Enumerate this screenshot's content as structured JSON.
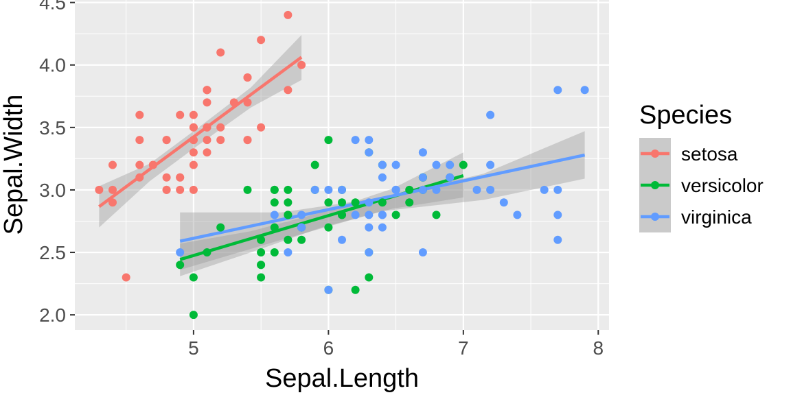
{
  "chart_data": {
    "type": "scatter",
    "title": "",
    "xlabel": "Sepal.Length",
    "ylabel": "Sepal.Width",
    "xlim": [
      4.12,
      8.08
    ],
    "ylim": [
      1.88,
      4.52
    ],
    "x_ticks": [
      5,
      6,
      7,
      8
    ],
    "x_tick_labels": [
      "5",
      "6",
      "7",
      "8"
    ],
    "y_ticks": [
      2.0,
      2.5,
      3.0,
      3.5,
      4.0,
      4.5
    ],
    "y_tick_labels": [
      "2.0",
      "2.5",
      "3.0",
      "3.5",
      "4.0",
      "4.5"
    ],
    "grid": true,
    "panel_background": "#ebebeb",
    "confidence_band_color": "#999999",
    "legend": {
      "title": "Species",
      "position": "right",
      "labels": [
        "setosa",
        "versicolor",
        "virginica"
      ]
    },
    "series": [
      {
        "name": "setosa",
        "color": "#F8766D",
        "points": [
          [
            5.1,
            3.5
          ],
          [
            4.9,
            3.0
          ],
          [
            4.7,
            3.2
          ],
          [
            4.6,
            3.1
          ],
          [
            5.0,
            3.6
          ],
          [
            5.4,
            3.9
          ],
          [
            4.6,
            3.4
          ],
          [
            5.0,
            3.4
          ],
          [
            4.4,
            2.9
          ],
          [
            4.9,
            3.1
          ],
          [
            5.4,
            3.7
          ],
          [
            4.8,
            3.4
          ],
          [
            4.8,
            3.0
          ],
          [
            4.3,
            3.0
          ],
          [
            5.8,
            4.0
          ],
          [
            5.7,
            4.4
          ],
          [
            5.4,
            3.9
          ],
          [
            5.1,
            3.5
          ],
          [
            5.7,
            3.8
          ],
          [
            5.1,
            3.8
          ],
          [
            5.4,
            3.4
          ],
          [
            5.1,
            3.7
          ],
          [
            4.6,
            3.6
          ],
          [
            5.1,
            3.3
          ],
          [
            4.8,
            3.4
          ],
          [
            5.0,
            3.0
          ],
          [
            5.0,
            3.4
          ],
          [
            5.2,
            3.5
          ],
          [
            5.2,
            3.4
          ],
          [
            4.7,
            3.2
          ],
          [
            4.8,
            3.1
          ],
          [
            5.4,
            3.4
          ],
          [
            5.2,
            4.1
          ],
          [
            5.5,
            4.2
          ],
          [
            4.9,
            3.1
          ],
          [
            5.0,
            3.2
          ],
          [
            5.5,
            3.5
          ],
          [
            4.9,
            3.6
          ],
          [
            4.4,
            3.0
          ],
          [
            5.1,
            3.4
          ],
          [
            5.0,
            3.5
          ],
          [
            4.5,
            2.3
          ],
          [
            4.4,
            3.2
          ],
          [
            5.0,
            3.5
          ],
          [
            5.1,
            3.8
          ],
          [
            4.8,
            3.0
          ],
          [
            5.1,
            3.8
          ],
          [
            4.6,
            3.2
          ],
          [
            5.3,
            3.7
          ],
          [
            5.0,
            3.3
          ]
        ],
        "fit": {
          "x": [
            4.3,
            5.8
          ],
          "y": [
            2.866,
            4.062
          ]
        },
        "band": {
          "x": [
            4.3,
            4.675,
            5.05,
            5.425,
            5.8
          ],
          "upper": [
            3.03,
            3.21,
            3.51,
            3.82,
            4.24
          ],
          "lower": [
            2.7,
            3.07,
            3.37,
            3.66,
            3.88
          ]
        }
      },
      {
        "name": "versicolor",
        "color": "#00BA38",
        "points": [
          [
            7.0,
            3.2
          ],
          [
            6.4,
            3.2
          ],
          [
            6.9,
            3.1
          ],
          [
            5.5,
            2.3
          ],
          [
            6.5,
            2.8
          ],
          [
            5.7,
            2.8
          ],
          [
            6.3,
            3.3
          ],
          [
            4.9,
            2.4
          ],
          [
            6.6,
            2.9
          ],
          [
            5.2,
            2.7
          ],
          [
            5.0,
            2.0
          ],
          [
            5.9,
            3.0
          ],
          [
            6.0,
            2.2
          ],
          [
            6.1,
            2.9
          ],
          [
            5.6,
            2.9
          ],
          [
            6.7,
            3.1
          ],
          [
            5.6,
            3.0
          ],
          [
            5.8,
            2.7
          ],
          [
            6.2,
            2.2
          ],
          [
            5.6,
            2.5
          ],
          [
            5.9,
            3.2
          ],
          [
            6.1,
            2.8
          ],
          [
            6.3,
            2.5
          ],
          [
            6.1,
            2.8
          ],
          [
            6.4,
            2.9
          ],
          [
            6.6,
            3.0
          ],
          [
            6.8,
            2.8
          ],
          [
            6.7,
            3.0
          ],
          [
            6.0,
            2.9
          ],
          [
            5.7,
            2.6
          ],
          [
            5.5,
            2.4
          ],
          [
            5.5,
            2.4
          ],
          [
            5.8,
            2.7
          ],
          [
            6.0,
            2.7
          ],
          [
            5.4,
            3.0
          ],
          [
            6.0,
            3.4
          ],
          [
            6.7,
            3.1
          ],
          [
            6.3,
            2.3
          ],
          [
            5.6,
            3.0
          ],
          [
            5.5,
            2.5
          ],
          [
            5.5,
            2.6
          ],
          [
            6.1,
            3.0
          ],
          [
            5.8,
            2.6
          ],
          [
            5.0,
            2.3
          ],
          [
            5.6,
            2.7
          ],
          [
            5.7,
            3.0
          ],
          [
            5.7,
            2.9
          ],
          [
            6.2,
            2.9
          ],
          [
            5.1,
            2.5
          ],
          [
            5.7,
            2.8
          ]
        ],
        "fit": {
          "x": [
            4.9,
            7.0
          ],
          "y": [
            2.443,
            3.114
          ]
        },
        "band": {
          "x": [
            4.9,
            5.425,
            5.95,
            6.475,
            7.0
          ],
          "upper": [
            2.57,
            2.67,
            2.82,
            3.01,
            3.3
          ],
          "lower": [
            2.31,
            2.5,
            2.7,
            2.85,
            2.94
          ]
        }
      },
      {
        "name": "virginica",
        "color": "#619CFF",
        "points": [
          [
            6.3,
            3.3
          ],
          [
            5.8,
            2.7
          ],
          [
            7.1,
            3.0
          ],
          [
            6.3,
            2.9
          ],
          [
            6.5,
            3.0
          ],
          [
            7.6,
            3.0
          ],
          [
            4.9,
            2.5
          ],
          [
            7.3,
            2.9
          ],
          [
            6.7,
            2.5
          ],
          [
            7.2,
            3.6
          ],
          [
            6.5,
            3.2
          ],
          [
            6.4,
            2.7
          ],
          [
            6.8,
            3.0
          ],
          [
            5.7,
            2.5
          ],
          [
            5.8,
            2.8
          ],
          [
            6.4,
            3.2
          ],
          [
            6.5,
            3.0
          ],
          [
            7.7,
            3.8
          ],
          [
            7.7,
            2.6
          ],
          [
            6.0,
            2.2
          ],
          [
            6.9,
            3.2
          ],
          [
            5.6,
            2.8
          ],
          [
            7.7,
            2.8
          ],
          [
            6.3,
            2.7
          ],
          [
            6.7,
            3.3
          ],
          [
            7.2,
            3.2
          ],
          [
            6.2,
            2.8
          ],
          [
            6.1,
            3.0
          ],
          [
            6.4,
            2.8
          ],
          [
            7.2,
            3.0
          ],
          [
            7.4,
            2.8
          ],
          [
            7.9,
            3.8
          ],
          [
            6.4,
            2.8
          ],
          [
            6.3,
            2.8
          ],
          [
            6.1,
            2.6
          ],
          [
            7.7,
            3.0
          ],
          [
            6.3,
            3.4
          ],
          [
            6.4,
            3.1
          ],
          [
            6.0,
            3.0
          ],
          [
            6.9,
            3.1
          ],
          [
            6.7,
            3.1
          ],
          [
            6.9,
            3.1
          ],
          [
            5.8,
            2.7
          ],
          [
            6.8,
            3.2
          ],
          [
            6.7,
            3.3
          ],
          [
            6.7,
            3.0
          ],
          [
            6.3,
            2.5
          ],
          [
            6.5,
            3.0
          ],
          [
            6.2,
            3.4
          ],
          [
            5.9,
            3.0
          ]
        ],
        "fit": {
          "x": [
            4.9,
            7.9
          ],
          "y": [
            2.59,
            3.279
          ]
        },
        "band": {
          "x": [
            4.9,
            5.65,
            6.4,
            7.15,
            7.9
          ],
          "upper": [
            2.82,
            2.82,
            2.94,
            3.13,
            3.47
          ],
          "lower": [
            2.36,
            2.6,
            2.83,
            2.92,
            3.09
          ]
        }
      }
    ]
  }
}
